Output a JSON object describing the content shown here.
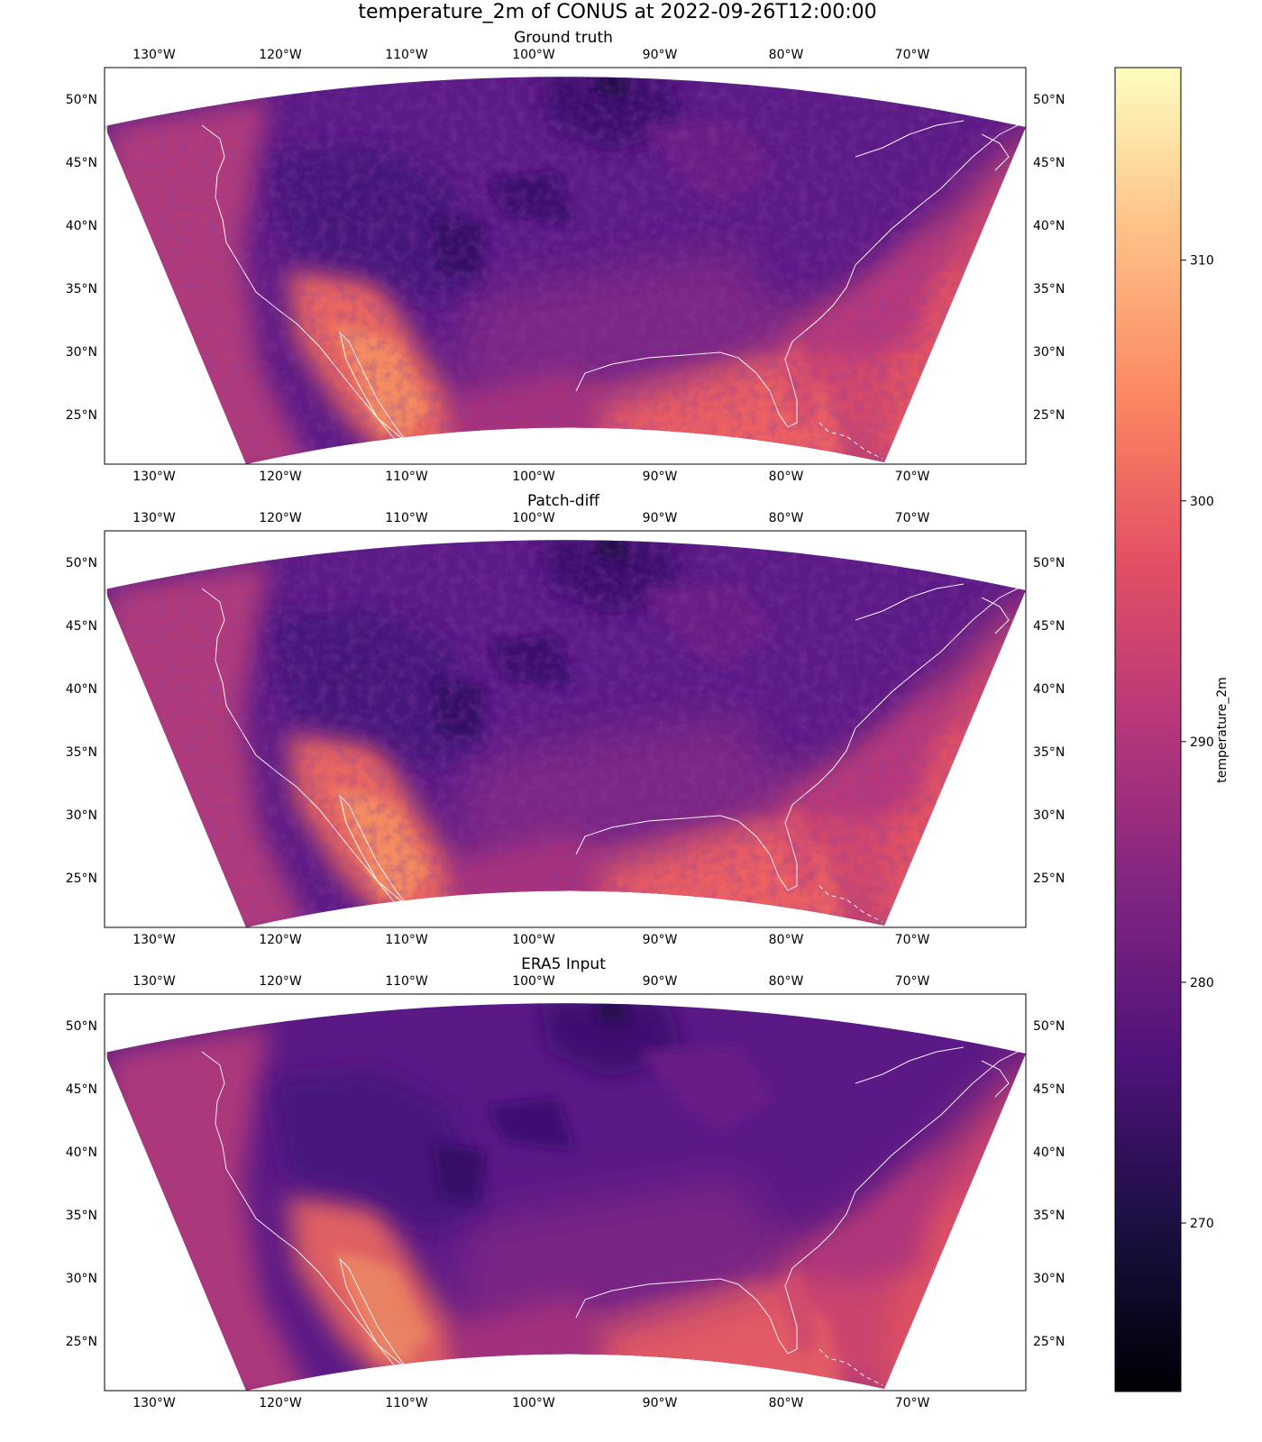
{
  "figure": {
    "title": "temperature_2m of CONUS at 2022-09-26T12:00:00"
  },
  "panels": [
    {
      "title": "Ground truth",
      "variant": "truth"
    },
    {
      "title": "Patch-diff",
      "variant": "diff"
    },
    {
      "title": "ERA5 Input",
      "variant": "era5"
    }
  ],
  "axes": {
    "lon_ticks": [
      "130°W",
      "120°W",
      "110°W",
      "100°W",
      "90°W",
      "80°W",
      "70°W"
    ],
    "lat_ticks": [
      "50°N",
      "45°N",
      "40°N",
      "35°N",
      "30°N",
      "25°N"
    ]
  },
  "colorbar": {
    "label": "temperature_2m",
    "colormap": "magma",
    "range": [
      263,
      318
    ],
    "ticks": [
      "310",
      "300",
      "290",
      "280",
      "270"
    ],
    "tick_values": [
      310,
      300,
      290,
      280,
      270
    ]
  },
  "map": {
    "projection": "Lambert conformal (CONUS)",
    "coastline_color": "#ffffff",
    "extent_lon": [
      -134,
      -61
    ],
    "extent_lat": [
      21,
      53
    ]
  },
  "chart_data": {
    "type": "heatmap",
    "title": "temperature_2m of CONUS at 2022-09-26T12:00:00",
    "subplots": [
      "Ground truth",
      "Patch-diff",
      "ERA5 Input"
    ],
    "colorbar_label": "temperature_2m",
    "value_range": [
      263,
      318
    ],
    "colorbar_ticks": [
      270,
      280,
      290,
      300,
      310
    ],
    "x_ticks": [
      "130°W",
      "120°W",
      "110°W",
      "100°W",
      "90°W",
      "80°W",
      "70°W"
    ],
    "y_ticks": [
      "50°N",
      "45°N",
      "40°N",
      "35°N",
      "30°N",
      "25°N"
    ]
  }
}
